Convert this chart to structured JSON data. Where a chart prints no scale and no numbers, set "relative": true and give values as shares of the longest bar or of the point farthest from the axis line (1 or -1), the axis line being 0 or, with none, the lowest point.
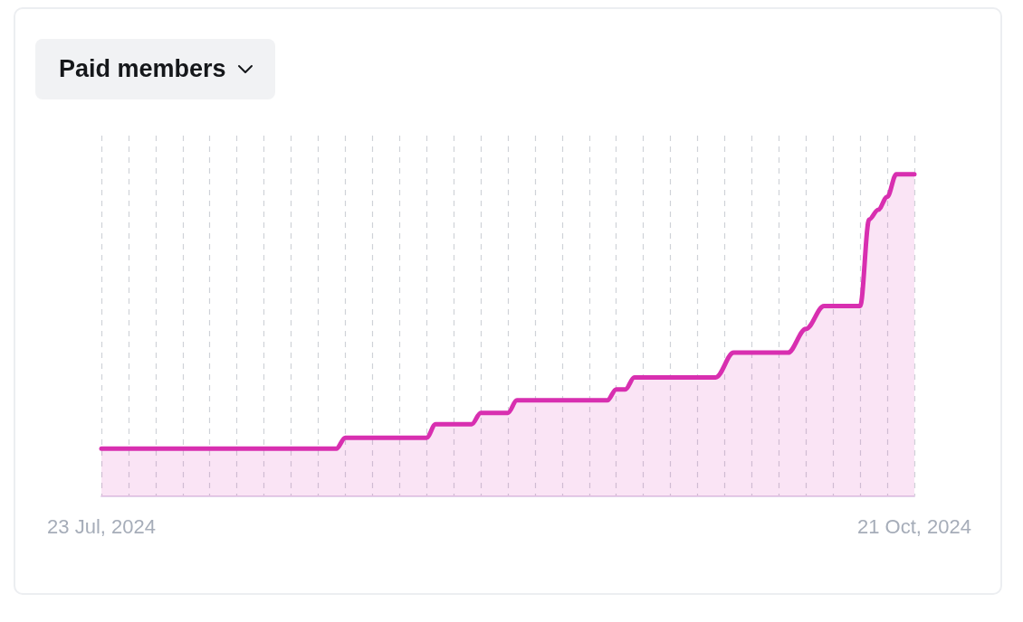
{
  "chart_data": {
    "type": "area",
    "title": "Paid members",
    "relative": true,
    "xlim": [
      "2024-07-23",
      "2024-10-21"
    ],
    "xticks": [
      {
        "value": "2024-07-23",
        "label": "23 Jul, 2024"
      },
      {
        "value": "2024-07-26",
        "label": null
      },
      {
        "value": "2024-07-29",
        "label": null
      },
      {
        "value": "2024-08-01",
        "label": null
      },
      {
        "value": "2024-08-04",
        "label": null
      },
      {
        "value": "2024-08-07",
        "label": null
      },
      {
        "value": "2024-08-10",
        "label": null
      },
      {
        "value": "2024-08-13",
        "label": null
      },
      {
        "value": "2024-08-16",
        "label": null
      },
      {
        "value": "2024-08-19",
        "label": null
      },
      {
        "value": "2024-08-22",
        "label": null
      },
      {
        "value": "2024-08-25",
        "label": null
      },
      {
        "value": "2024-08-28",
        "label": null
      },
      {
        "value": "2024-08-31",
        "label": null
      },
      {
        "value": "2024-09-03",
        "label": null
      },
      {
        "value": "2024-09-06",
        "label": null
      },
      {
        "value": "2024-09-09",
        "label": null
      },
      {
        "value": "2024-09-12",
        "label": null
      },
      {
        "value": "2024-09-15",
        "label": null
      },
      {
        "value": "2024-09-18",
        "label": null
      },
      {
        "value": "2024-09-21",
        "label": null
      },
      {
        "value": "2024-09-24",
        "label": null
      },
      {
        "value": "2024-09-27",
        "label": null
      },
      {
        "value": "2024-09-30",
        "label": null
      },
      {
        "value": "2024-10-03",
        "label": null
      },
      {
        "value": "2024-10-06",
        "label": null
      },
      {
        "value": "2024-10-09",
        "label": null
      },
      {
        "value": "2024-10-12",
        "label": null
      },
      {
        "value": "2024-10-15",
        "label": null
      },
      {
        "value": "2024-10-18",
        "label": null
      },
      {
        "value": "2024-10-21",
        "label": "21 Oct, 2024"
      }
    ],
    "x": [
      "2024-07-23",
      "2024-08-18",
      "2024-08-19",
      "2024-08-28",
      "2024-08-29",
      "2024-09-02",
      "2024-09-03",
      "2024-09-06",
      "2024-09-07",
      "2024-09-17",
      "2024-09-18",
      "2024-09-19",
      "2024-09-20",
      "2024-09-29",
      "2024-10-01",
      "2024-10-07",
      "2024-10-09",
      "2024-10-11",
      "2024-10-15",
      "2024-10-16",
      "2024-10-17",
      "2024-10-18",
      "2024-10-19",
      "2024-10-21"
    ],
    "series": [
      {
        "color": "#d82fb0",
        "values": [
          0.148,
          0.148,
          0.182,
          0.182,
          0.224,
          0.224,
          0.259,
          0.259,
          0.298,
          0.298,
          0.332,
          0.332,
          0.369,
          0.369,
          0.446,
          0.446,
          0.52,
          0.591,
          0.591,
          0.86,
          0.89,
          0.93,
          1,
          1
        ]
      }
    ],
    "grid": "x",
    "marker": "none",
    "line_style": "solid"
  }
}
